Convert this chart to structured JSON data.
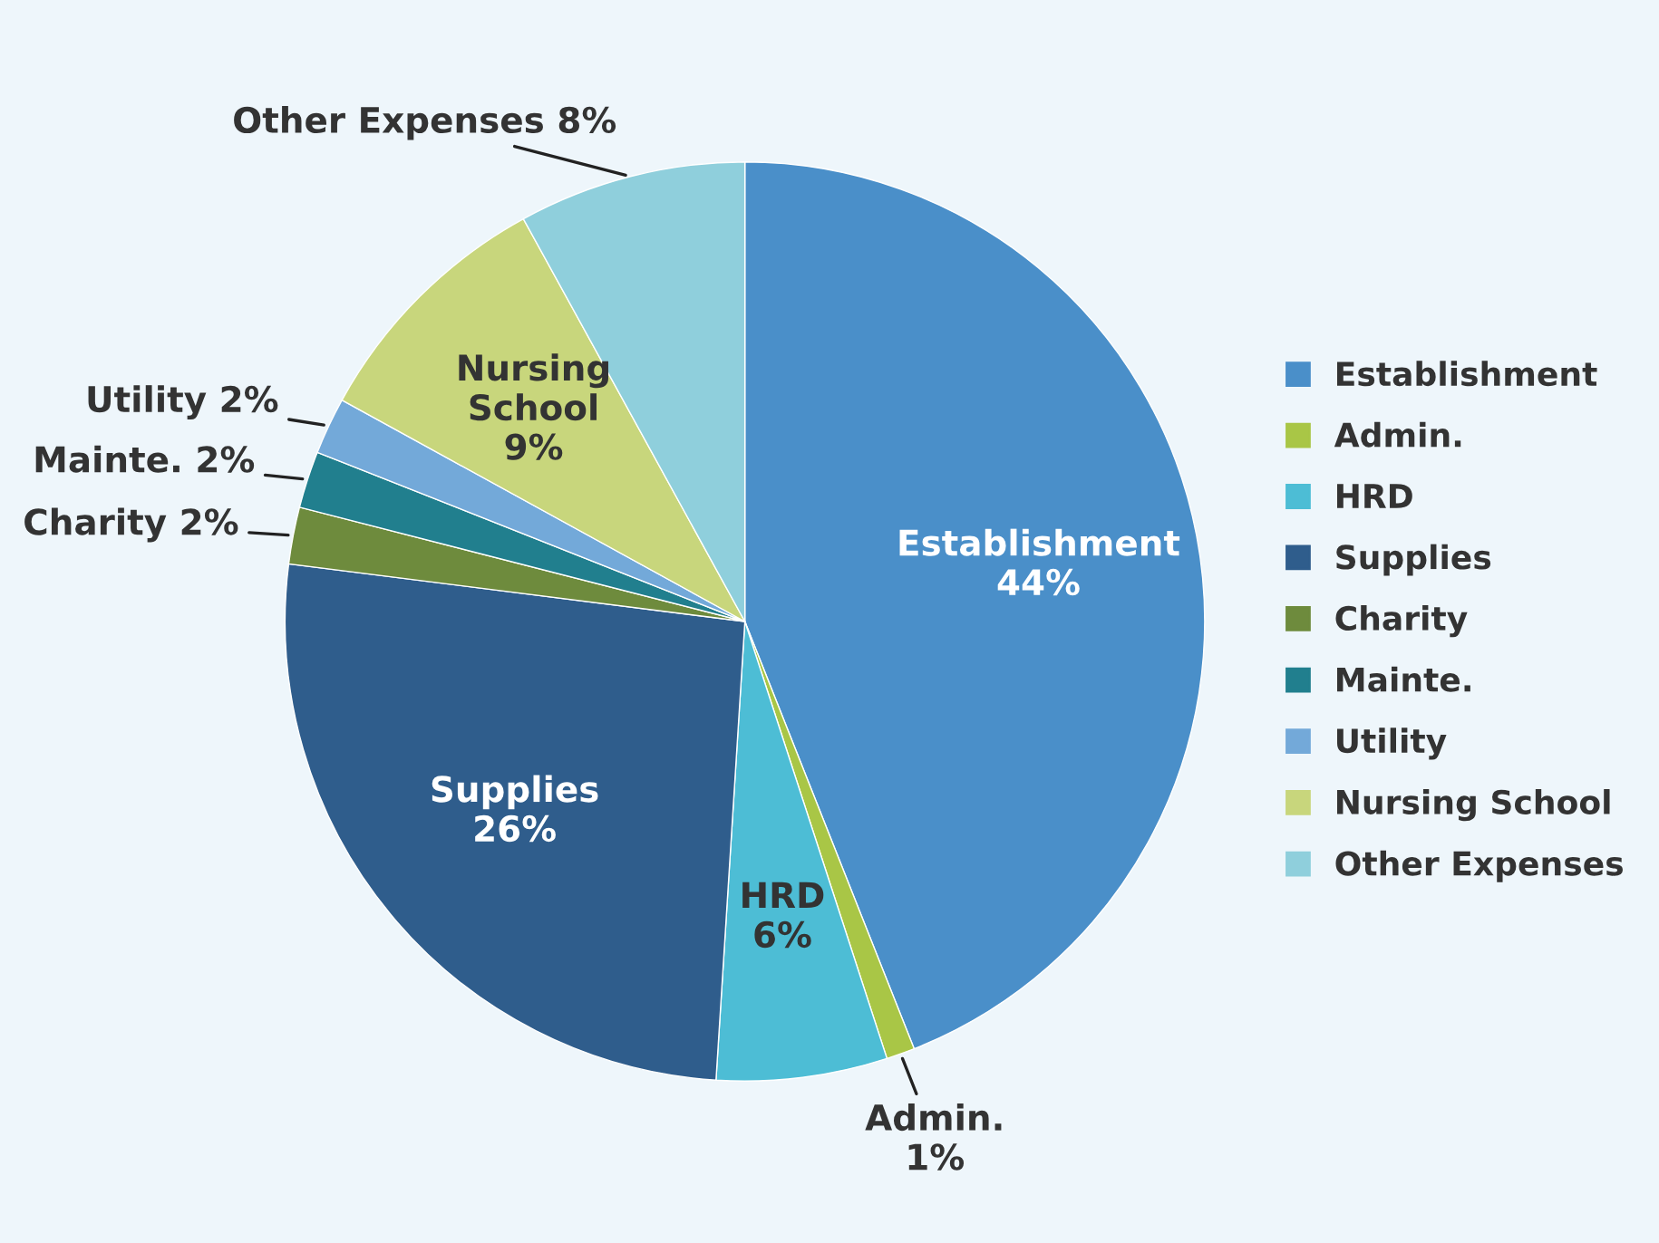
{
  "chart_data": {
    "type": "pie",
    "categories": [
      "Establishment",
      "Admin.",
      "HRD",
      "Supplies",
      "Charity",
      "Mainte.",
      "Utility",
      "Nursing School",
      "Other Expenses"
    ],
    "values": [
      44,
      1,
      6,
      26,
      2,
      2,
      2,
      9,
      8
    ],
    "value_labels": [
      "44%",
      "1%",
      "6%",
      "26%",
      "2%",
      "2%",
      "2%",
      "9%",
      "8%"
    ],
    "colors": [
      "#4a8fc9",
      "#a9c646",
      "#4dbdd5",
      "#2f5d8c",
      "#6e8b3d",
      "#217f8e",
      "#73a9d9",
      "#c8d67c",
      "#8fcfdc"
    ],
    "legend": "right"
  }
}
